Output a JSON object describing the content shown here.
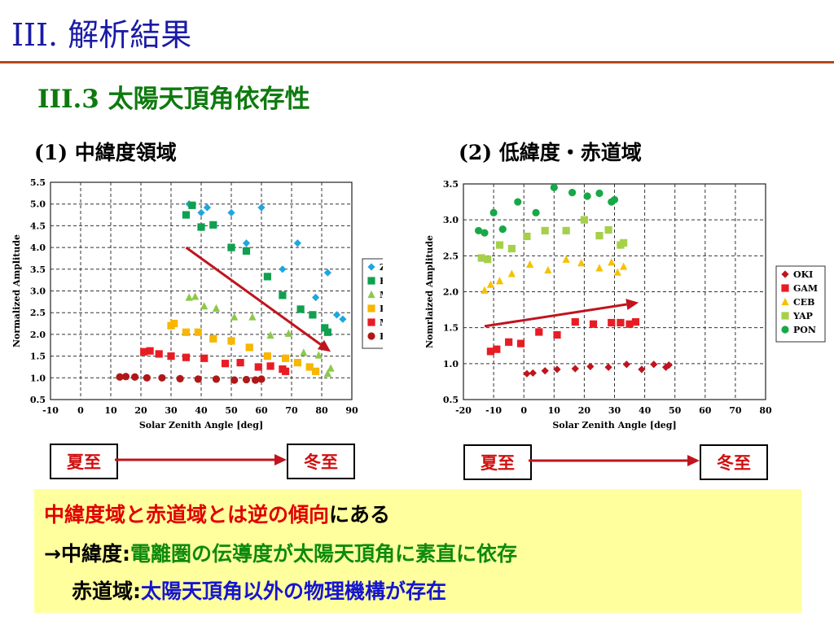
{
  "slide_title": "III. 解析結果",
  "section_title": "III.3 太陽天頂角依存性",
  "panels": [
    {
      "label_num": "(1)",
      "label_text": "中緯度領域"
    },
    {
      "label_num": "(2)",
      "label_text": "低緯度・赤道域"
    }
  ],
  "seasons": {
    "summer": "夏至",
    "winter": "冬至"
  },
  "summary": {
    "line1_red": "中緯度域と赤道域とは逆の傾向",
    "line1_black": "にある",
    "line2_prefix": "→中緯度",
    "line2_colon": ":",
    "line2_green": "電離圏の伝導度が太陽天頂角に素直に依存",
    "line3_prefix": "赤道域",
    "line3_colon": ":",
    "line3_blue": "太陽天頂角以外の物理機構が存在"
  },
  "chart_data": [
    {
      "type": "scatter",
      "xlabel": "Solar Zenith Angle [deg]",
      "ylabel": "Normalized Amplitude",
      "xlim": [
        -10,
        90
      ],
      "ylim": [
        0.5,
        5.5
      ],
      "xticks": [
        -10,
        0,
        10,
        20,
        30,
        40,
        50,
        60,
        70,
        80,
        90
      ],
      "yticks": [
        0.5,
        1.0,
        1.5,
        2.0,
        2.5,
        3.0,
        3.5,
        4.0,
        4.5,
        5.0,
        5.5
      ],
      "grid": true,
      "legend_placement": "right",
      "trend_arrow": {
        "from": [
          35,
          4.0
        ],
        "to": [
          83,
          1.6
        ],
        "color": "#c0141e"
      },
      "series": [
        {
          "name": "ZYK",
          "marker": "diamond",
          "color": "#1fa6e0",
          "points": [
            [
              36,
              5.0
            ],
            [
              40,
              4.8
            ],
            [
              42,
              4.92
            ],
            [
              50,
              4.8
            ],
            [
              55,
              4.1
            ],
            [
              60,
              4.92
            ],
            [
              67,
              3.5
            ],
            [
              72,
              4.1
            ],
            [
              78,
              2.85
            ],
            [
              82,
              3.42
            ],
            [
              85,
              2.45
            ],
            [
              87,
              2.35
            ]
          ]
        },
        {
          "name": "KSM",
          "marker": "square",
          "color": "#10a050",
          "points": [
            [
              35,
              4.75
            ],
            [
              37,
              4.97
            ],
            [
              40,
              4.47
            ],
            [
              44,
              4.52
            ],
            [
              50,
              4.0
            ],
            [
              55,
              3.92
            ],
            [
              62,
              3.33
            ],
            [
              67,
              2.9
            ],
            [
              73,
              2.58
            ],
            [
              77,
              2.45
            ],
            [
              81,
              2.15
            ],
            [
              82,
              2.05
            ]
          ]
        },
        {
          "name": "MGD",
          "marker": "triangle",
          "color": "#8cc84a",
          "points": [
            [
              36,
              2.85
            ],
            [
              38,
              2.87
            ],
            [
              41,
              2.65
            ],
            [
              45,
              2.6
            ],
            [
              51,
              2.4
            ],
            [
              57,
              2.4
            ],
            [
              63,
              1.98
            ],
            [
              69,
              2.02
            ],
            [
              74,
              1.58
            ],
            [
              79,
              1.52
            ],
            [
              82,
              1.1
            ],
            [
              83,
              1.22
            ]
          ]
        },
        {
          "name": "PTK",
          "marker": "square",
          "color": "#f7b600",
          "points": [
            [
              30,
              2.2
            ],
            [
              31,
              2.25
            ],
            [
              35,
              2.05
            ],
            [
              39,
              2.05
            ],
            [
              44,
              1.9
            ],
            [
              50,
              1.85
            ],
            [
              56,
              1.7
            ],
            [
              62,
              1.5
            ],
            [
              68,
              1.45
            ],
            [
              72,
              1.35
            ],
            [
              76,
              1.25
            ],
            [
              78,
              1.15
            ]
          ]
        },
        {
          "name": "MMB",
          "marker": "square",
          "color": "#e81c24",
          "points": [
            [
              21,
              1.6
            ],
            [
              23,
              1.62
            ],
            [
              26,
              1.55
            ],
            [
              30,
              1.5
            ],
            [
              35,
              1.47
            ],
            [
              41,
              1.45
            ],
            [
              48,
              1.33
            ],
            [
              53,
              1.35
            ],
            [
              59,
              1.25
            ],
            [
              63,
              1.27
            ],
            [
              67,
              1.2
            ],
            [
              68,
              1.15
            ]
          ]
        },
        {
          "name": "KAK",
          "marker": "circle",
          "color": "#b01818",
          "points": [
            [
              13,
              1.02
            ],
            [
              15,
              1.03
            ],
            [
              18,
              1.02
            ],
            [
              22,
              1.0
            ],
            [
              27,
              1.0
            ],
            [
              33,
              0.98
            ],
            [
              39,
              0.97
            ],
            [
              45,
              0.97
            ],
            [
              51,
              0.95
            ],
            [
              55,
              0.96
            ],
            [
              58,
              0.95
            ],
            [
              60,
              0.97
            ]
          ]
        }
      ]
    },
    {
      "type": "scatter",
      "xlabel": "Solar Zenith Angle [deg]",
      "ylabel": "Nomrlaized Amplitude",
      "xlim": [
        -20,
        80
      ],
      "ylim": [
        0.5,
        3.5
      ],
      "xticks": [
        -20,
        -10,
        0,
        10,
        20,
        30,
        40,
        50,
        60,
        70,
        80
      ],
      "yticks": [
        0.5,
        1.0,
        1.5,
        2.0,
        2.5,
        3.0,
        3.5
      ],
      "grid": true,
      "legend_placement": "right",
      "trend_arrow": {
        "from": [
          -13,
          1.52
        ],
        "to": [
          38,
          1.85
        ],
        "color": "#c0141e"
      },
      "series": [
        {
          "name": "OKI",
          "marker": "diamond",
          "color": "#c0141e",
          "points": [
            [
              1,
              0.86
            ],
            [
              3,
              0.87
            ],
            [
              7,
              0.9
            ],
            [
              11,
              0.92
            ],
            [
              17,
              0.93
            ],
            [
              22,
              0.96
            ],
            [
              28,
              0.95
            ],
            [
              34,
              0.99
            ],
            [
              39,
              0.92
            ],
            [
              43,
              0.99
            ],
            [
              47,
              0.95
            ],
            [
              48,
              0.98
            ]
          ]
        },
        {
          "name": "GAM",
          "marker": "square",
          "color": "#e81c24",
          "points": [
            [
              -11,
              1.17
            ],
            [
              -9,
              1.2
            ],
            [
              -5,
              1.3
            ],
            [
              -1,
              1.28
            ],
            [
              5,
              1.44
            ],
            [
              11,
              1.4
            ],
            [
              17,
              1.58
            ],
            [
              23,
              1.55
            ],
            [
              29,
              1.57
            ],
            [
              32,
              1.57
            ],
            [
              35,
              1.55
            ],
            [
              37,
              1.58
            ]
          ]
        },
        {
          "name": "CEB",
          "marker": "triangle",
          "color": "#f5c200",
          "points": [
            [
              -13,
              2.02
            ],
            [
              -11,
              2.1
            ],
            [
              -8,
              2.15
            ],
            [
              -4,
              2.25
            ],
            [
              2,
              2.38
            ],
            [
              8,
              2.3
            ],
            [
              14,
              2.45
            ],
            [
              19,
              2.4
            ],
            [
              25,
              2.33
            ],
            [
              29,
              2.41
            ],
            [
              31,
              2.27
            ],
            [
              33,
              2.35
            ]
          ]
        },
        {
          "name": "YAP",
          "marker": "square",
          "color": "#a6d04a",
          "points": [
            [
              -14,
              2.47
            ],
            [
              -12,
              2.45
            ],
            [
              -8,
              2.65
            ],
            [
              -4,
              2.6
            ],
            [
              1,
              2.77
            ],
            [
              7,
              2.85
            ],
            [
              14,
              2.85
            ],
            [
              20,
              3.0
            ],
            [
              25,
              2.78
            ],
            [
              28,
              2.86
            ],
            [
              32,
              2.65
            ],
            [
              33,
              2.68
            ]
          ]
        },
        {
          "name": "PON",
          "marker": "circle",
          "color": "#18a848",
          "points": [
            [
              -15,
              2.85
            ],
            [
              -13,
              2.82
            ],
            [
              -10,
              3.1
            ],
            [
              -7,
              2.87
            ],
            [
              -2,
              3.25
            ],
            [
              4,
              3.1
            ],
            [
              10,
              3.45
            ],
            [
              16,
              3.38
            ],
            [
              21,
              3.33
            ],
            [
              25,
              3.37
            ],
            [
              29,
              3.25
            ],
            [
              30,
              3.28
            ]
          ]
        }
      ]
    }
  ]
}
